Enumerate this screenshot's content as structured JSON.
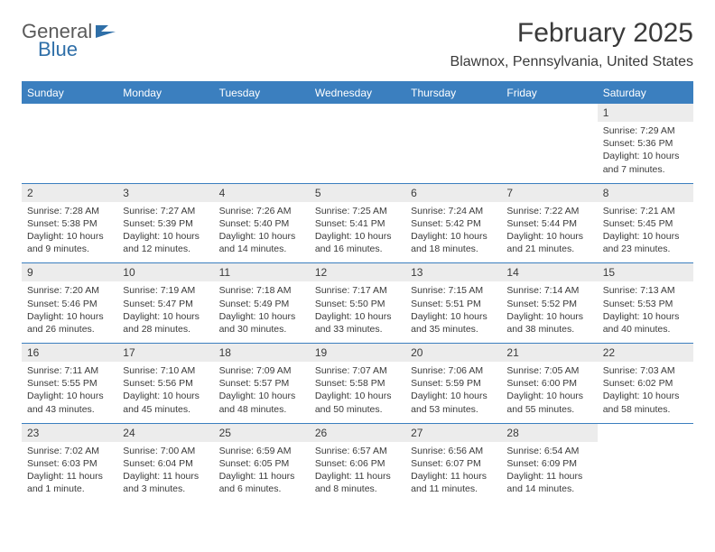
{
  "logo": {
    "word1": "General",
    "word2": "Blue"
  },
  "title": "February 2025",
  "location": "Blawnox, Pennsylvania, United States",
  "colors": {
    "header_bg": "#3b7fbf",
    "header_text": "#ffffff",
    "daynum_bg": "#ececec",
    "text": "#3a3a3a",
    "border": "#3b7fbf",
    "logo_gray": "#5a5a5a",
    "logo_blue": "#2f6fa8"
  },
  "typography": {
    "title_fontsize": 30,
    "location_fontsize": 16,
    "header_fontsize": 12,
    "daynum_fontsize": 12,
    "body_fontsize": 10.5
  },
  "day_names": [
    "Sunday",
    "Monday",
    "Tuesday",
    "Wednesday",
    "Thursday",
    "Friday",
    "Saturday"
  ],
  "weeks": [
    [
      null,
      null,
      null,
      null,
      null,
      null,
      {
        "n": "1",
        "sunrise": "7:29 AM",
        "sunset": "5:36 PM",
        "daylight": "10 hours and 7 minutes."
      }
    ],
    [
      {
        "n": "2",
        "sunrise": "7:28 AM",
        "sunset": "5:38 PM",
        "daylight": "10 hours and 9 minutes."
      },
      {
        "n": "3",
        "sunrise": "7:27 AM",
        "sunset": "5:39 PM",
        "daylight": "10 hours and 12 minutes."
      },
      {
        "n": "4",
        "sunrise": "7:26 AM",
        "sunset": "5:40 PM",
        "daylight": "10 hours and 14 minutes."
      },
      {
        "n": "5",
        "sunrise": "7:25 AM",
        "sunset": "5:41 PM",
        "daylight": "10 hours and 16 minutes."
      },
      {
        "n": "6",
        "sunrise": "7:24 AM",
        "sunset": "5:42 PM",
        "daylight": "10 hours and 18 minutes."
      },
      {
        "n": "7",
        "sunrise": "7:22 AM",
        "sunset": "5:44 PM",
        "daylight": "10 hours and 21 minutes."
      },
      {
        "n": "8",
        "sunrise": "7:21 AM",
        "sunset": "5:45 PM",
        "daylight": "10 hours and 23 minutes."
      }
    ],
    [
      {
        "n": "9",
        "sunrise": "7:20 AM",
        "sunset": "5:46 PM",
        "daylight": "10 hours and 26 minutes."
      },
      {
        "n": "10",
        "sunrise": "7:19 AM",
        "sunset": "5:47 PM",
        "daylight": "10 hours and 28 minutes."
      },
      {
        "n": "11",
        "sunrise": "7:18 AM",
        "sunset": "5:49 PM",
        "daylight": "10 hours and 30 minutes."
      },
      {
        "n": "12",
        "sunrise": "7:17 AM",
        "sunset": "5:50 PM",
        "daylight": "10 hours and 33 minutes."
      },
      {
        "n": "13",
        "sunrise": "7:15 AM",
        "sunset": "5:51 PM",
        "daylight": "10 hours and 35 minutes."
      },
      {
        "n": "14",
        "sunrise": "7:14 AM",
        "sunset": "5:52 PM",
        "daylight": "10 hours and 38 minutes."
      },
      {
        "n": "15",
        "sunrise": "7:13 AM",
        "sunset": "5:53 PM",
        "daylight": "10 hours and 40 minutes."
      }
    ],
    [
      {
        "n": "16",
        "sunrise": "7:11 AM",
        "sunset": "5:55 PM",
        "daylight": "10 hours and 43 minutes."
      },
      {
        "n": "17",
        "sunrise": "7:10 AM",
        "sunset": "5:56 PM",
        "daylight": "10 hours and 45 minutes."
      },
      {
        "n": "18",
        "sunrise": "7:09 AM",
        "sunset": "5:57 PM",
        "daylight": "10 hours and 48 minutes."
      },
      {
        "n": "19",
        "sunrise": "7:07 AM",
        "sunset": "5:58 PM",
        "daylight": "10 hours and 50 minutes."
      },
      {
        "n": "20",
        "sunrise": "7:06 AM",
        "sunset": "5:59 PM",
        "daylight": "10 hours and 53 minutes."
      },
      {
        "n": "21",
        "sunrise": "7:05 AM",
        "sunset": "6:00 PM",
        "daylight": "10 hours and 55 minutes."
      },
      {
        "n": "22",
        "sunrise": "7:03 AM",
        "sunset": "6:02 PM",
        "daylight": "10 hours and 58 minutes."
      }
    ],
    [
      {
        "n": "23",
        "sunrise": "7:02 AM",
        "sunset": "6:03 PM",
        "daylight": "11 hours and 1 minute."
      },
      {
        "n": "24",
        "sunrise": "7:00 AM",
        "sunset": "6:04 PM",
        "daylight": "11 hours and 3 minutes."
      },
      {
        "n": "25",
        "sunrise": "6:59 AM",
        "sunset": "6:05 PM",
        "daylight": "11 hours and 6 minutes."
      },
      {
        "n": "26",
        "sunrise": "6:57 AM",
        "sunset": "6:06 PM",
        "daylight": "11 hours and 8 minutes."
      },
      {
        "n": "27",
        "sunrise": "6:56 AM",
        "sunset": "6:07 PM",
        "daylight": "11 hours and 11 minutes."
      },
      {
        "n": "28",
        "sunrise": "6:54 AM",
        "sunset": "6:09 PM",
        "daylight": "11 hours and 14 minutes."
      },
      null
    ]
  ],
  "labels": {
    "sunrise_prefix": "Sunrise: ",
    "sunset_prefix": "Sunset: ",
    "daylight_prefix": "Daylight: "
  }
}
